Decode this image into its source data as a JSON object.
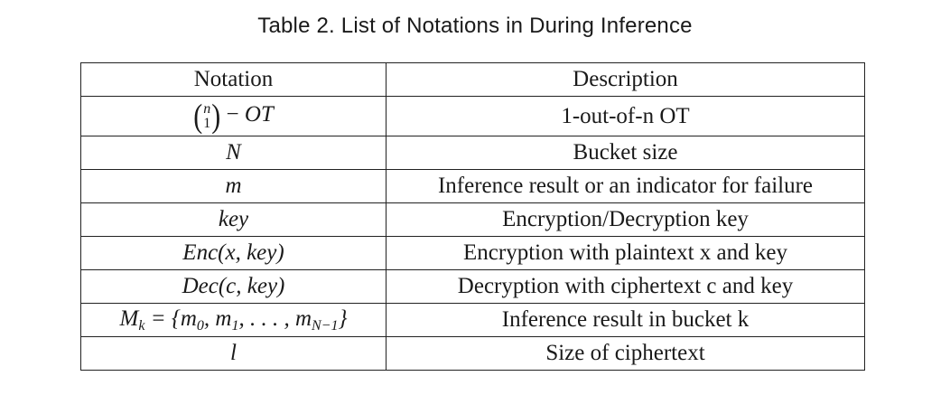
{
  "caption": "Table 2.  List of Notations in During Inference",
  "headers": {
    "notation": "Notation",
    "description": "Description"
  },
  "rows": [
    {
      "notation": "(n 1) − OT",
      "description": "1-out-of-n OT"
    },
    {
      "notation": "N",
      "description": "Bucket size"
    },
    {
      "notation": "m",
      "description": "Inference result or an indicator for failure"
    },
    {
      "notation": "key",
      "description": "Encryption/Decryption key"
    },
    {
      "notation": "Enc(x, key)",
      "description": "Encryption with plaintext x and key"
    },
    {
      "notation": "Dec(c, key)",
      "description": "Decryption with ciphertext c and key"
    },
    {
      "notation": "Mk = {m0, m1, . . . , mN−1}",
      "description": "Inference result in bucket k"
    },
    {
      "notation": "l",
      "description": "Size of ciphertext"
    }
  ]
}
